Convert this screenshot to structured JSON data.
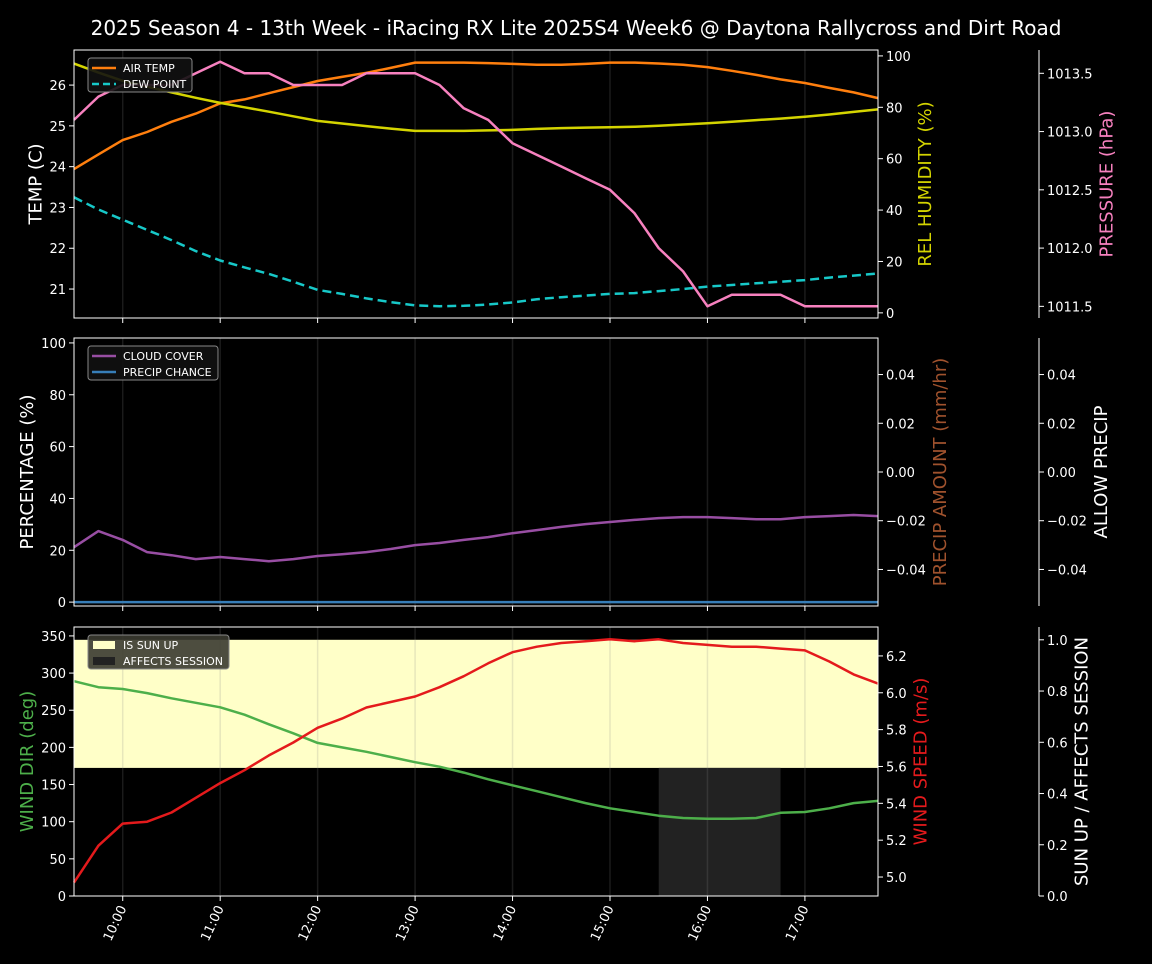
{
  "title": "2025 Season 4 - 13th Week - iRacing RX Lite 2025S4 Week6 @ Daytona Rallycross and Dirt Road",
  "chart_data": {
    "type": "line",
    "x": [
      "09:30",
      "09:45",
      "10:00",
      "10:15",
      "10:30",
      "10:45",
      "11:00",
      "11:15",
      "11:30",
      "11:45",
      "12:00",
      "12:15",
      "12:30",
      "12:45",
      "13:00",
      "13:15",
      "13:30",
      "13:45",
      "14:00",
      "14:15",
      "14:30",
      "14:45",
      "15:00",
      "15:15",
      "15:30",
      "15:45",
      "16:00",
      "16:15",
      "16:30",
      "16:45",
      "17:00",
      "17:15",
      "17:30",
      "17:45"
    ],
    "xlim": [
      "09:30",
      "17:45"
    ],
    "xticks": [
      "10:00",
      "11:00",
      "12:00",
      "13:00",
      "14:00",
      "15:00",
      "16:00",
      "17:00"
    ],
    "grid": "vertical at x ticks",
    "panels": [
      {
        "axes": {
          "temp": {
            "label": "TEMP (C)",
            "ylim": [
              20.29,
              26.86
            ],
            "ticks": [
              21,
              22,
              23,
              24,
              25,
              26
            ],
            "color": "#ffffff"
          },
          "humidity": {
            "label": "REL HUMIDITY (%)",
            "ylim": [
              -2,
              102.3
            ],
            "ticks": [
              0,
              20,
              40,
              60,
              80,
              100
            ],
            "color": "#d4d400"
          },
          "pressure": {
            "label": "PRESSURE (hPa)",
            "ylim": [
              1011.4,
              1013.7
            ],
            "ticks": [
              "1011.5",
              "1012.0",
              "1012.5",
              "1013.0",
              "1013.5"
            ],
            "color": "#f781bf"
          }
        },
        "legend": {
          "placement": "upper-left",
          "entries": [
            "AIR TEMP",
            "DEW POINT"
          ]
        },
        "series": [
          {
            "name": "AIR TEMP",
            "axis": "temp",
            "color": "#ff7f0e",
            "dashed": false,
            "values": [
              23.94,
              24.3,
              24.65,
              24.85,
              25.1,
              25.3,
              25.55,
              25.65,
              25.8,
              25.95,
              26.1,
              26.2,
              26.3,
              26.42,
              26.55,
              26.55,
              26.55,
              26.54,
              26.52,
              26.5,
              26.5,
              26.52,
              26.55,
              26.55,
              26.53,
              26.5,
              26.44,
              26.35,
              26.25,
              26.14,
              26.05,
              25.93,
              25.82,
              25.68
            ]
          },
          {
            "name": "DEW POINT",
            "axis": "temp",
            "color": "#17c8c8",
            "dashed": true,
            "values": [
              23.25,
              22.95,
              22.7,
              22.45,
              22.2,
              21.93,
              21.7,
              21.53,
              21.37,
              21.18,
              20.98,
              20.88,
              20.77,
              20.68,
              20.6,
              20.58,
              20.59,
              20.62,
              20.67,
              20.75,
              20.8,
              20.84,
              20.88,
              20.9,
              20.95,
              21.0,
              21.06,
              21.1,
              21.14,
              21.18,
              21.22,
              21.28,
              21.33,
              21.38
            ]
          },
          {
            "axis": "humidity",
            "color": "#d4d400",
            "dashed": false,
            "values": [
              97,
              93.5,
              90.3,
              88,
              85.8,
              83.7,
              81.7,
              80,
              78.3,
              76.5,
              74.7,
              73.7,
              72.7,
              71.7,
              70.8,
              70.8,
              70.8,
              71,
              71.2,
              71.6,
              71.9,
              72.1,
              72.2,
              72.4,
              72.8,
              73.3,
              73.8,
              74.4,
              75,
              75.6,
              76.3,
              77.2,
              78.2,
              79.2
            ]
          },
          {
            "axis": "pressure",
            "color": "#f781bf",
            "dashed": false,
            "values": [
              1013.1,
              1013.3,
              1013.4,
              1013.4,
              1013.4,
              1013.5,
              1013.6,
              1013.5,
              1013.5,
              1013.4,
              1013.4,
              1013.4,
              1013.5,
              1013.5,
              1013.5,
              1013.4,
              1013.2,
              1013.1,
              1012.9,
              1012.8,
              1012.7,
              1012.6,
              1012.5,
              1012.3,
              1012.0,
              1011.8,
              1011.5,
              1011.6,
              1011.6,
              1011.6,
              1011.5,
              1011.5,
              1011.5,
              1011.5
            ]
          }
        ]
      },
      {
        "axes": {
          "pct": {
            "label": "PERCENTAGE (%)",
            "ylim": [
              -1.5,
              101.9
            ],
            "ticks": [
              0,
              20,
              40,
              60,
              80,
              100
            ],
            "color": "#ffffff"
          },
          "precip": {
            "label": "PRECIP AMOUNT (mm/hr)",
            "ylim": [
              -0.055,
              0.055
            ],
            "ticks": [
              "−0.04",
              "−0.02",
              "0.00",
              "0.02",
              "0.04"
            ],
            "color": "#a0522d"
          },
          "allow": {
            "label": "ALLOW PRECIP",
            "ylim": [
              -0.055,
              0.055
            ],
            "ticks": [
              "−0.04",
              "−0.02",
              "0.00",
              "0.02",
              "0.04"
            ],
            "color": "#ffffff"
          }
        },
        "legend": {
          "placement": "upper-left",
          "entries": [
            "CLOUD COVER",
            "PRECIP CHANCE"
          ]
        },
        "series": [
          {
            "name": "CLOUD COVER",
            "axis": "pct",
            "color": "#984ea3",
            "dashed": false,
            "values": [
              21.2,
              27.4,
              24,
              19.3,
              18.1,
              16.6,
              17.4,
              16.6,
              15.8,
              16.6,
              17.8,
              18.5,
              19.3,
              20.5,
              22,
              22.8,
              24,
              25.1,
              26.6,
              27.8,
              29,
              30.1,
              30.9,
              31.7,
              32.4,
              32.8,
              32.8,
              32.4,
              32,
              32,
              32.8,
              33.2,
              33.6,
              33.2
            ]
          },
          {
            "name": "PRECIP CHANCE",
            "axis": "pct",
            "color": "#377eb8",
            "dashed": false,
            "values": [
              0,
              0,
              0,
              0,
              0,
              0,
              0,
              0,
              0,
              0,
              0,
              0,
              0,
              0,
              0,
              0,
              0,
              0,
              0,
              0,
              0,
              0,
              0,
              0,
              0,
              0,
              0,
              0,
              0,
              0,
              0,
              0,
              0,
              0
            ]
          }
        ]
      },
      {
        "axes": {
          "dir": {
            "label": "WIND DIR (deg)",
            "ylim": [
              0,
              362
            ],
            "ticks": [
              0,
              50,
              100,
              150,
              200,
              250,
              300,
              350
            ],
            "color": "#4daf4a"
          },
          "speed": {
            "label": "WIND SPEED (m/s)",
            "ylim": [
              4.897,
              6.357
            ],
            "ticks": [
              "5.0",
              "5.2",
              "5.4",
              "5.6",
              "5.8",
              "6.0",
              "6.2"
            ],
            "color": "#e41a1c"
          },
          "sun": {
            "label": "SUN UP / AFFECTS SESSION",
            "ylim": [
              0,
              1.05
            ],
            "ticks": [
              "0.0",
              "0.2",
              "0.4",
              "0.6",
              "0.8",
              "1.0"
            ],
            "color": "#ffffff"
          }
        },
        "legend": {
          "placement": "upper-left",
          "entries": [
            "IS SUN UP",
            "AFFECTS SESSION"
          ]
        },
        "is_sun_up": {
          "start": "09:30",
          "end": "17:45",
          "range": [
            0.5,
            1.0
          ],
          "color": "#ffffc8"
        },
        "affects_session": {
          "start": "15:30",
          "end": "16:45",
          "range": [
            0,
            0.5
          ],
          "color": "#222222"
        },
        "series": [
          {
            "axis": "dir",
            "color": "#4daf4a",
            "dashed": false,
            "values": [
              289,
              281,
              278.6,
              273,
              266,
              260,
              254,
              244,
              231,
              219,
              206,
              200,
              194,
              187,
              180,
              174,
              166,
              157,
              149,
              141,
              133,
              125,
              118,
              113,
              108,
              105,
              104,
              104,
              105,
              112,
              113,
              118,
              125,
              128
            ]
          },
          {
            "axis": "speed",
            "color": "#e41a1c",
            "dashed": false,
            "values": [
              4.97,
              5.17,
              5.29,
              5.3,
              5.35,
              5.43,
              5.51,
              5.58,
              5.66,
              5.73,
              5.81,
              5.86,
              5.92,
              5.95,
              5.98,
              6.03,
              6.09,
              6.16,
              6.22,
              6.25,
              6.27,
              6.28,
              6.29,
              6.28,
              6.29,
              6.27,
              6.26,
              6.25,
              6.25,
              6.24,
              6.23,
              6.17,
              6.1,
              6.05
            ]
          }
        ]
      }
    ]
  }
}
